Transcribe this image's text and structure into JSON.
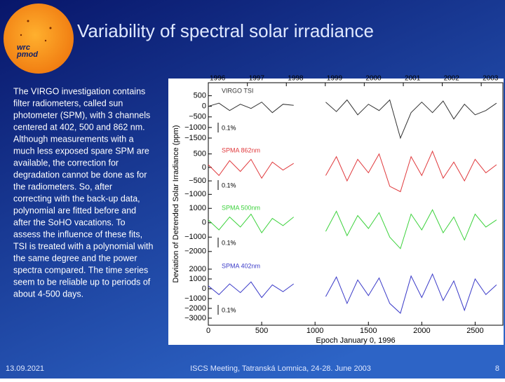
{
  "slide": {
    "title": "Variability of spectral solar irradiance",
    "logo_text": [
      "wrc",
      "pmod"
    ],
    "body_lines": [
      "The VIRGO investigation contains",
      "filter radiometers, called sun",
      "photometer (SPM), with 3 channels",
      "centered at 402, 500 and 862 nm.",
      "Although measurements with a",
      "much less exposed spare SPM are",
      "available, the correction for",
      "degradation cannot be done as for",
      "the radiometers.  So, after",
      "correcting with the back-up data,",
      "polynomial are fitted before and",
      "after the SoHO vacations. To",
      "assess the influence of these fits,",
      "TSI is treated with a polynomial with",
      "the same degree and the power",
      "spectra compared. The time series",
      "seem to be reliable up to periods of",
      "about 4-500 days."
    ],
    "footer": {
      "date": "13.09.2021",
      "event": "ISCS Meeting, Tatranská Lomnica, 24-28. June 2003",
      "page": "8"
    }
  },
  "chart_data": {
    "type": "line",
    "x_label": "Epoch January 0, 1996",
    "y_label": "Deviation of Detrended Solar Irradiance (ppm)",
    "x": [
      0,
      100,
      200,
      300,
      400,
      500,
      600,
      700,
      800,
      900,
      1000,
      1100,
      1200,
      1300,
      1400,
      1500,
      1600,
      1700,
      1800,
      1900,
      2000,
      2100,
      2200,
      2300,
      2400,
      2500,
      2600,
      2700
    ],
    "xlim": [
      0,
      2760
    ],
    "xticks": [
      0,
      500,
      1000,
      1500,
      2000,
      2500
    ],
    "x2ticks": [
      {
        "value": 0,
        "label": "1996"
      },
      {
        "value": 366,
        "label": "1997"
      },
      {
        "value": 731,
        "label": "1998"
      },
      {
        "value": 1096,
        "label": "1999"
      },
      {
        "value": 1461,
        "label": "2000"
      },
      {
        "value": 1827,
        "label": "2001"
      },
      {
        "value": 2192,
        "label": "2002"
      },
      {
        "value": 2557,
        "label": "2003"
      }
    ],
    "series": [
      {
        "name": "VIRGO TSI",
        "color": "#333333",
        "scale_label": "0.1%",
        "ylim": [
          -1700,
          1050
        ],
        "yticks": [
          500,
          0,
          {
            "value": -500,
            "label": "−500"
          },
          {
            "value": -1000,
            "label": "−1000"
          },
          {
            "value": -1500,
            "label": "−1500"
          }
        ],
        "values": [
          0,
          150,
          -200,
          100,
          -100,
          200,
          -300,
          100,
          50,
          null,
          null,
          200,
          -250,
          300,
          -400,
          100,
          -200,
          300,
          -1500,
          -300,
          200,
          -300,
          250,
          -600,
          100,
          -400,
          -200,
          150
        ]
      },
      {
        "name": "SPMA 862nm",
        "color": "#e0393c",
        "scale_label": "0.1%",
        "ylim": [
          -1200,
          880
        ],
        "yticks": [
          500,
          0,
          {
            "value": -500,
            "label": "−500"
          },
          {
            "value": -1000,
            "label": "−1000"
          }
        ],
        "values": [
          100,
          -300,
          250,
          -150,
          300,
          -400,
          200,
          -100,
          150,
          null,
          null,
          -300,
          400,
          -500,
          300,
          -200,
          500,
          -700,
          -900,
          400,
          -300,
          600,
          -400,
          200,
          -500,
          300,
          -200,
          100
        ]
      },
      {
        "name": "SPMA 500nm",
        "color": "#3cd23c",
        "scale_label": "0.1%",
        "ylim": [
          -2400,
          1500
        ],
        "yticks": [
          1000,
          0,
          {
            "value": -1000,
            "label": "−1000"
          },
          {
            "value": -2000,
            "label": "−2000"
          }
        ],
        "values": [
          200,
          -500,
          400,
          -300,
          600,
          -700,
          300,
          -200,
          400,
          null,
          null,
          -600,
          800,
          -900,
          500,
          -400,
          700,
          -1000,
          -1800,
          600,
          -500,
          900,
          -700,
          400,
          -1200,
          600,
          -300,
          200
        ]
      },
      {
        "name": "SPMA 402nm",
        "color": "#3a3ac8",
        "scale_label": "0.1%",
        "ylim": [
          -3650,
          3000
        ],
        "yticks": [
          2000,
          1000,
          0,
          {
            "value": -1000,
            "label": "−1000"
          },
          {
            "value": -2000,
            "label": "−2000"
          },
          {
            "value": -3000,
            "label": "−3000"
          }
        ],
        "values": [
          300,
          -600,
          500,
          -400,
          700,
          -900,
          400,
          -300,
          500,
          null,
          null,
          -800,
          1200,
          -1500,
          900,
          -700,
          1100,
          -1500,
          -2500,
          1300,
          -900,
          1500,
          -1200,
          800,
          -2200,
          1000,
          -600,
          400
        ]
      }
    ]
  }
}
